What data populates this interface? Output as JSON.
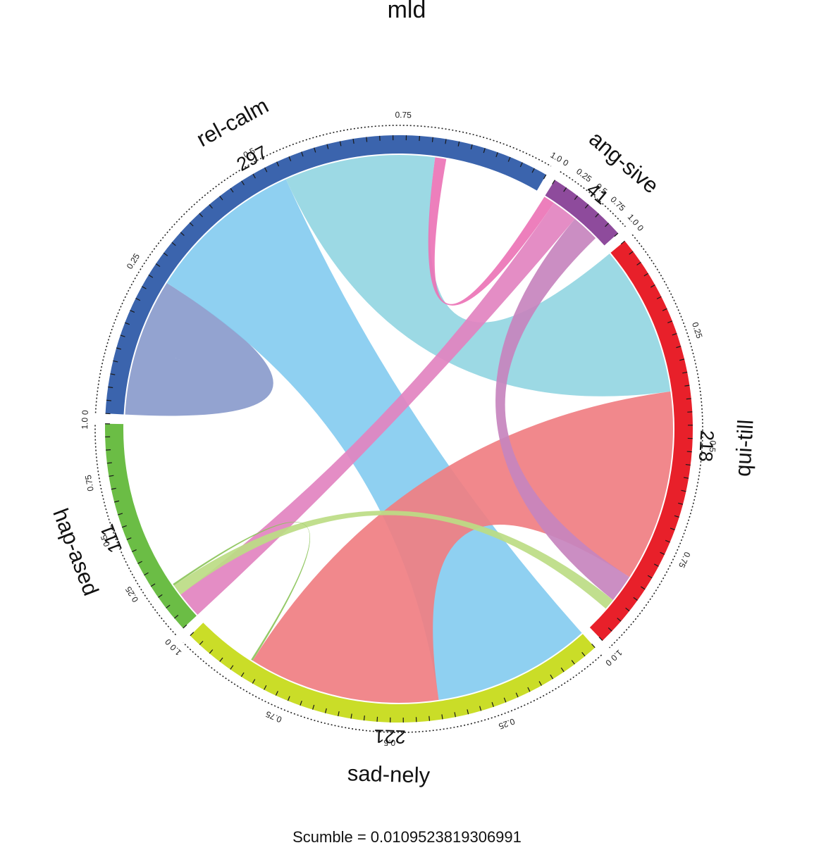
{
  "chart_data": {
    "type": "chord",
    "title": "mld",
    "sectors": [
      {
        "name": "rel-calm",
        "total": 297,
        "color": "#3b64ad"
      },
      {
        "name": "ang-sive",
        "total": 41,
        "color": "#8e4b9c"
      },
      {
        "name": "qui-till",
        "total": 218,
        "color": "#e8202a"
      },
      {
        "name": "sad-nely",
        "total": 221,
        "color": "#cadd28"
      },
      {
        "name": "hap-ased",
        "total": 111,
        "color": "#6bbd45"
      }
    ],
    "links": [
      {
        "from": "rel-calm",
        "to": "rel-calm",
        "value": 37,
        "color": "#8a9bcc"
      },
      {
        "from": "rel-calm",
        "to": "sad-nely",
        "value": 85,
        "color": "#86ccf0"
      },
      {
        "from": "rel-calm",
        "to": "qui-till",
        "value": 81,
        "color": "#94d6e2"
      },
      {
        "from": "rel-calm",
        "to": "ang-sive",
        "value": 6,
        "color": "#ec74b6"
      },
      {
        "from": "qui-till",
        "to": "sad-nely",
        "value": 103,
        "color": "#f07e82"
      },
      {
        "from": "hap-ased",
        "to": "ang-sive",
        "value": 14,
        "color": "#e283c0"
      },
      {
        "from": "qui-till",
        "to": "ang-sive",
        "value": 15,
        "color": "#c784be"
      },
      {
        "from": "hap-ased",
        "to": "qui-till",
        "value": 6,
        "color": "#bcdc84"
      },
      {
        "from": "sad-nely",
        "to": "hap-ased",
        "value": 1,
        "color": "#8cc45a"
      }
    ],
    "tick_labels": [
      "0",
      "0.25",
      "0.5",
      "0.75",
      "1.0"
    ],
    "footer": "Scumble = 0.0109523819306991"
  }
}
